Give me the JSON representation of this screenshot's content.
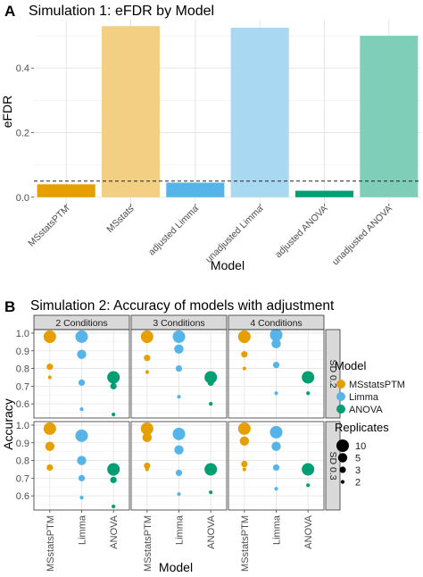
{
  "chart_data": [
    {
      "panel_label": "A",
      "type": "bar",
      "title": "Simulation 1: eFDR by Model",
      "xlabel": "Model",
      "ylabel": "eFDR",
      "ylim": [
        0,
        0.55
      ],
      "yticks": [
        0.0,
        0.2,
        0.4
      ],
      "ytick_labels": [
        "0.0",
        "0.2",
        "0.4"
      ],
      "reference_line": {
        "value": 0.05,
        "style": "dashed"
      },
      "categories": [
        "MSstatsPTM",
        "MSstats",
        "adjusted Limma",
        "unadjusted Limma",
        "adjusted ANOVA",
        "unadjusted ANOVA"
      ],
      "values": [
        0.04,
        0.53,
        0.045,
        0.525,
        0.02,
        0.5
      ],
      "colors": [
        "#E69F00",
        "#F3CF84",
        "#56B4E9",
        "#A9D8F3",
        "#009E73",
        "#7FCEB8"
      ],
      "grid": true
    },
    {
      "panel_label": "B",
      "type": "scatter",
      "title": "Simulation 2: Accuracy of models with adjustment",
      "xlabel": "Model",
      "ylabel": "Accuracy",
      "ylim": [
        0.52,
        1.02
      ],
      "yticks": [
        0.6,
        0.7,
        0.8,
        0.9,
        1.0
      ],
      "ytick_labels": [
        "0.6",
        "0.7",
        "0.8",
        "0.9",
        "1.0"
      ],
      "x_categories": [
        "MSstatsPTM",
        "Limma",
        "ANOVA"
      ],
      "column_facets": [
        "2 Conditions",
        "3 Conditions",
        "4 Conditions"
      ],
      "row_facets": [
        "SD 0.2",
        "SD 0.3"
      ],
      "size_levels": [
        10,
        5,
        3,
        2
      ],
      "legend": {
        "position": "right",
        "color_title": "Model",
        "color_entries": [
          {
            "label": "MSstatsPTM",
            "color": "#E69F00"
          },
          {
            "label": "Limma",
            "color": "#56B4E9"
          },
          {
            "label": "ANOVA",
            "color": "#009E73"
          }
        ],
        "size_title": "Replicates",
        "size_entries": [
          {
            "label": "10",
            "replicates": 10
          },
          {
            "label": "5",
            "replicates": 5
          },
          {
            "label": "3",
            "replicates": 3
          },
          {
            "label": "2",
            "replicates": 2
          }
        ]
      },
      "panels": [
        {
          "row": "SD 0.2",
          "col": "2 Conditions",
          "points": [
            {
              "model": "MSstatsPTM",
              "replicates": 10,
              "accuracy": 0.98
            },
            {
              "model": "MSstatsPTM",
              "replicates": 5,
              "accuracy": 0.97
            },
            {
              "model": "MSstatsPTM",
              "replicates": 3,
              "accuracy": 0.81
            },
            {
              "model": "MSstatsPTM",
              "replicates": 2,
              "accuracy": 0.75
            },
            {
              "model": "Limma",
              "replicates": 10,
              "accuracy": 0.98
            },
            {
              "model": "Limma",
              "replicates": 5,
              "accuracy": 0.88
            },
            {
              "model": "Limma",
              "replicates": 3,
              "accuracy": 0.72
            },
            {
              "model": "Limma",
              "replicates": 2,
              "accuracy": 0.57
            },
            {
              "model": "ANOVA",
              "replicates": 10,
              "accuracy": 0.75
            },
            {
              "model": "ANOVA",
              "replicates": 5,
              "accuracy": 0.74
            },
            {
              "model": "ANOVA",
              "replicates": 3,
              "accuracy": 0.7
            },
            {
              "model": "ANOVA",
              "replicates": 2,
              "accuracy": 0.54
            }
          ]
        },
        {
          "row": "SD 0.2",
          "col": "3 Conditions",
          "points": [
            {
              "model": "MSstatsPTM",
              "replicates": 10,
              "accuracy": 0.98
            },
            {
              "model": "MSstatsPTM",
              "replicates": 5,
              "accuracy": 0.97
            },
            {
              "model": "MSstatsPTM",
              "replicates": 3,
              "accuracy": 0.86
            },
            {
              "model": "MSstatsPTM",
              "replicates": 2,
              "accuracy": 0.78
            },
            {
              "model": "Limma",
              "replicates": 10,
              "accuracy": 0.98
            },
            {
              "model": "Limma",
              "replicates": 5,
              "accuracy": 0.91
            },
            {
              "model": "Limma",
              "replicates": 3,
              "accuracy": 0.8
            },
            {
              "model": "Limma",
              "replicates": 2,
              "accuracy": 0.64
            },
            {
              "model": "ANOVA",
              "replicates": 10,
              "accuracy": 0.75
            },
            {
              "model": "ANOVA",
              "replicates": 5,
              "accuracy": 0.74
            },
            {
              "model": "ANOVA",
              "replicates": 3,
              "accuracy": 0.72
            },
            {
              "model": "ANOVA",
              "replicates": 2,
              "accuracy": 0.6
            }
          ]
        },
        {
          "row": "SD 0.2",
          "col": "4 Conditions",
          "points": [
            {
              "model": "MSstatsPTM",
              "replicates": 10,
              "accuracy": 0.98
            },
            {
              "model": "MSstatsPTM",
              "replicates": 5,
              "accuracy": 0.97
            },
            {
              "model": "MSstatsPTM",
              "replicates": 3,
              "accuracy": 0.88
            },
            {
              "model": "MSstatsPTM",
              "replicates": 2,
              "accuracy": 0.8
            },
            {
              "model": "Limma",
              "replicates": 10,
              "accuracy": 0.99
            },
            {
              "model": "Limma",
              "replicates": 5,
              "accuracy": 0.94
            },
            {
              "model": "Limma",
              "replicates": 3,
              "accuracy": 0.82
            },
            {
              "model": "Limma",
              "replicates": 2,
              "accuracy": 0.66
            },
            {
              "model": "ANOVA",
              "replicates": 10,
              "accuracy": 0.75
            },
            {
              "model": "ANOVA",
              "replicates": 5,
              "accuracy": 0.75
            },
            {
              "model": "ANOVA",
              "replicates": 3,
              "accuracy": 0.74
            },
            {
              "model": "ANOVA",
              "replicates": 2,
              "accuracy": 0.66
            }
          ]
        },
        {
          "row": "SD 0.3",
          "col": "2 Conditions",
          "points": [
            {
              "model": "MSstatsPTM",
              "replicates": 10,
              "accuracy": 0.98
            },
            {
              "model": "MSstatsPTM",
              "replicates": 5,
              "accuracy": 0.88
            },
            {
              "model": "MSstatsPTM",
              "replicates": 3,
              "accuracy": 0.76
            },
            {
              "model": "Limma",
              "replicates": 10,
              "accuracy": 0.94
            },
            {
              "model": "Limma",
              "replicates": 5,
              "accuracy": 0.8
            },
            {
              "model": "Limma",
              "replicates": 3,
              "accuracy": 0.7
            },
            {
              "model": "Limma",
              "replicates": 2,
              "accuracy": 0.59
            },
            {
              "model": "ANOVA",
              "replicates": 10,
              "accuracy": 0.75
            },
            {
              "model": "ANOVA",
              "replicates": 5,
              "accuracy": 0.74
            },
            {
              "model": "ANOVA",
              "replicates": 3,
              "accuracy": 0.69
            },
            {
              "model": "ANOVA",
              "replicates": 2,
              "accuracy": 0.54
            }
          ]
        },
        {
          "row": "SD 0.3",
          "col": "3 Conditions",
          "points": [
            {
              "model": "MSstatsPTM",
              "replicates": 10,
              "accuracy": 0.98
            },
            {
              "model": "MSstatsPTM",
              "replicates": 5,
              "accuracy": 0.93
            },
            {
              "model": "MSstatsPTM",
              "replicates": 3,
              "accuracy": 0.77
            },
            {
              "model": "MSstatsPTM",
              "replicates": 2,
              "accuracy": 0.75
            },
            {
              "model": "Limma",
              "replicates": 10,
              "accuracy": 0.95
            },
            {
              "model": "Limma",
              "replicates": 5,
              "accuracy": 0.86
            },
            {
              "model": "Limma",
              "replicates": 3,
              "accuracy": 0.73
            },
            {
              "model": "Limma",
              "replicates": 2,
              "accuracy": 0.61
            },
            {
              "model": "ANOVA",
              "replicates": 10,
              "accuracy": 0.75
            },
            {
              "model": "ANOVA",
              "replicates": 5,
              "accuracy": 0.75
            },
            {
              "model": "ANOVA",
              "replicates": 2,
              "accuracy": 0.62
            }
          ]
        },
        {
          "row": "SD 0.3",
          "col": "4 Conditions",
          "points": [
            {
              "model": "MSstatsPTM",
              "replicates": 10,
              "accuracy": 0.98
            },
            {
              "model": "MSstatsPTM",
              "replicates": 5,
              "accuracy": 0.91
            },
            {
              "model": "MSstatsPTM",
              "replicates": 3,
              "accuracy": 0.78
            },
            {
              "model": "MSstatsPTM",
              "replicates": 2,
              "accuracy": 0.75
            },
            {
              "model": "Limma",
              "replicates": 10,
              "accuracy": 0.96
            },
            {
              "model": "Limma",
              "replicates": 5,
              "accuracy": 0.88
            },
            {
              "model": "Limma",
              "replicates": 3,
              "accuracy": 0.76
            },
            {
              "model": "Limma",
              "replicates": 2,
              "accuracy": 0.64
            },
            {
              "model": "ANOVA",
              "replicates": 10,
              "accuracy": 0.75
            },
            {
              "model": "ANOVA",
              "replicates": 5,
              "accuracy": 0.75
            },
            {
              "model": "ANOVA",
              "replicates": 2,
              "accuracy": 0.66
            }
          ]
        }
      ]
    }
  ]
}
